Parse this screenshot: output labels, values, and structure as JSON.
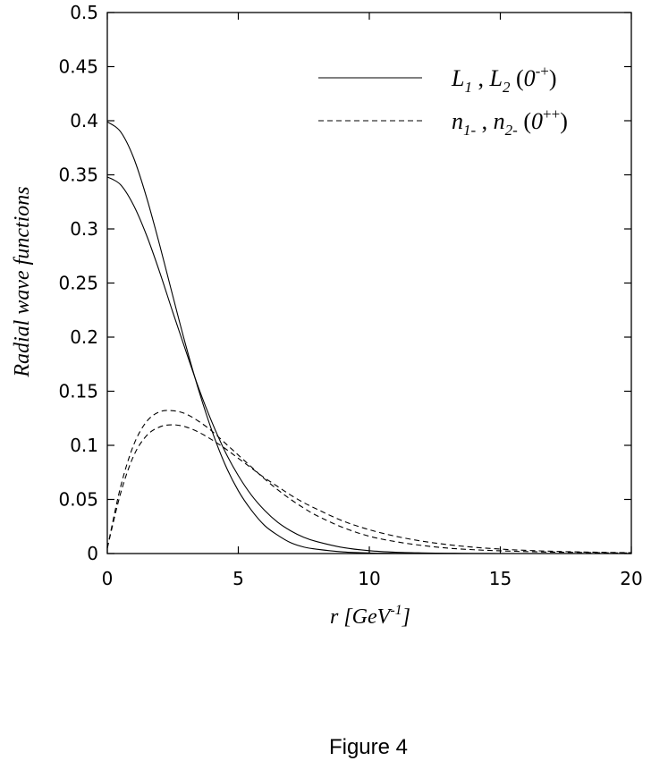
{
  "chart_data": {
    "type": "line",
    "xlabel": {
      "base": "r [GeV",
      "sup": "-1",
      "tail": "]"
    },
    "ylabel": "Radial wave functions",
    "xlim": [
      0,
      20
    ],
    "ylim": [
      0,
      0.5
    ],
    "x_ticks": [
      "0",
      "5",
      "10",
      "15",
      "20"
    ],
    "y_ticks": [
      "0",
      "0.05",
      "0.1",
      "0.15",
      "0.2",
      "0.25",
      "0.3",
      "0.35",
      "0.4",
      "0.45",
      "0.5"
    ],
    "grid": false,
    "legend_position": "top-right",
    "legend": [
      {
        "style": "solid",
        "parts": [
          {
            "t": "L",
            "i": true
          },
          {
            "t": "1",
            "i": true,
            "sub": true
          },
          {
            "t": " , ",
            "i": false
          },
          {
            "t": "L",
            "i": true
          },
          {
            "t": "2",
            "i": true,
            "sub": true
          },
          {
            "t": " (",
            "i": false
          },
          {
            "t": "0",
            "i": true
          },
          {
            "t": "-+",
            "i": false,
            "sup": true
          },
          {
            "t": ")",
            "i": false
          }
        ]
      },
      {
        "style": "dashed",
        "parts": [
          {
            "t": "n",
            "i": true
          },
          {
            "t": "1-",
            "i": true,
            "sub": true
          },
          {
            "t": " , ",
            "i": false
          },
          {
            "t": "n",
            "i": true
          },
          {
            "t": "2-",
            "i": true,
            "sub": true
          },
          {
            "t": " (",
            "i": false
          },
          {
            "t": "0",
            "i": true
          },
          {
            "t": "++",
            "i": false,
            "sup": true
          },
          {
            "t": ")",
            "i": false
          }
        ]
      }
    ],
    "x": [
      0,
      0.5,
      1,
      1.5,
      2,
      2.5,
      3,
      3.5,
      4,
      4.5,
      5,
      5.5,
      6,
      6.5,
      7,
      7.5,
      8,
      9,
      10,
      11,
      12,
      13,
      14,
      15,
      16,
      17,
      18,
      19,
      20
    ],
    "series": [
      {
        "style": "solid",
        "values": [
          0.399,
          0.39,
          0.366,
          0.329,
          0.285,
          0.238,
          0.192,
          0.15,
          0.113,
          0.082,
          0.058,
          0.04,
          0.026,
          0.017,
          0.01,
          0.006,
          0.004,
          0.0015,
          0.0005,
          0.0002,
          0.0001,
          0,
          0,
          0,
          0,
          0,
          0,
          0,
          0
        ]
      },
      {
        "style": "solid",
        "values": [
          0.348,
          0.341,
          0.322,
          0.294,
          0.26,
          0.223,
          0.187,
          0.152,
          0.121,
          0.094,
          0.072,
          0.054,
          0.04,
          0.029,
          0.021,
          0.015,
          0.011,
          0.0055,
          0.0026,
          0.0012,
          0.0006,
          0.0003,
          0.0001,
          0,
          0,
          0,
          0,
          0,
          0
        ]
      },
      {
        "style": "dashed",
        "values": [
          0.005,
          0.061,
          0.1,
          0.122,
          0.131,
          0.132,
          0.129,
          0.122,
          0.113,
          0.102,
          0.091,
          0.08,
          0.069,
          0.059,
          0.05,
          0.042,
          0.035,
          0.024,
          0.016,
          0.011,
          0.0075,
          0.005,
          0.0035,
          0.0025,
          0.0018,
          0.0013,
          0.001,
          0.0007,
          0.0005
        ]
      },
      {
        "style": "dashed",
        "values": [
          0.005,
          0.055,
          0.09,
          0.109,
          0.117,
          0.119,
          0.117,
          0.112,
          0.105,
          0.097,
          0.088,
          0.079,
          0.07,
          0.062,
          0.054,
          0.047,
          0.041,
          0.03,
          0.022,
          0.016,
          0.0115,
          0.0082,
          0.0058,
          0.0041,
          0.0029,
          0.0021,
          0.0015,
          0.0011,
          0.0008
        ]
      }
    ]
  },
  "caption": "Figure 4"
}
